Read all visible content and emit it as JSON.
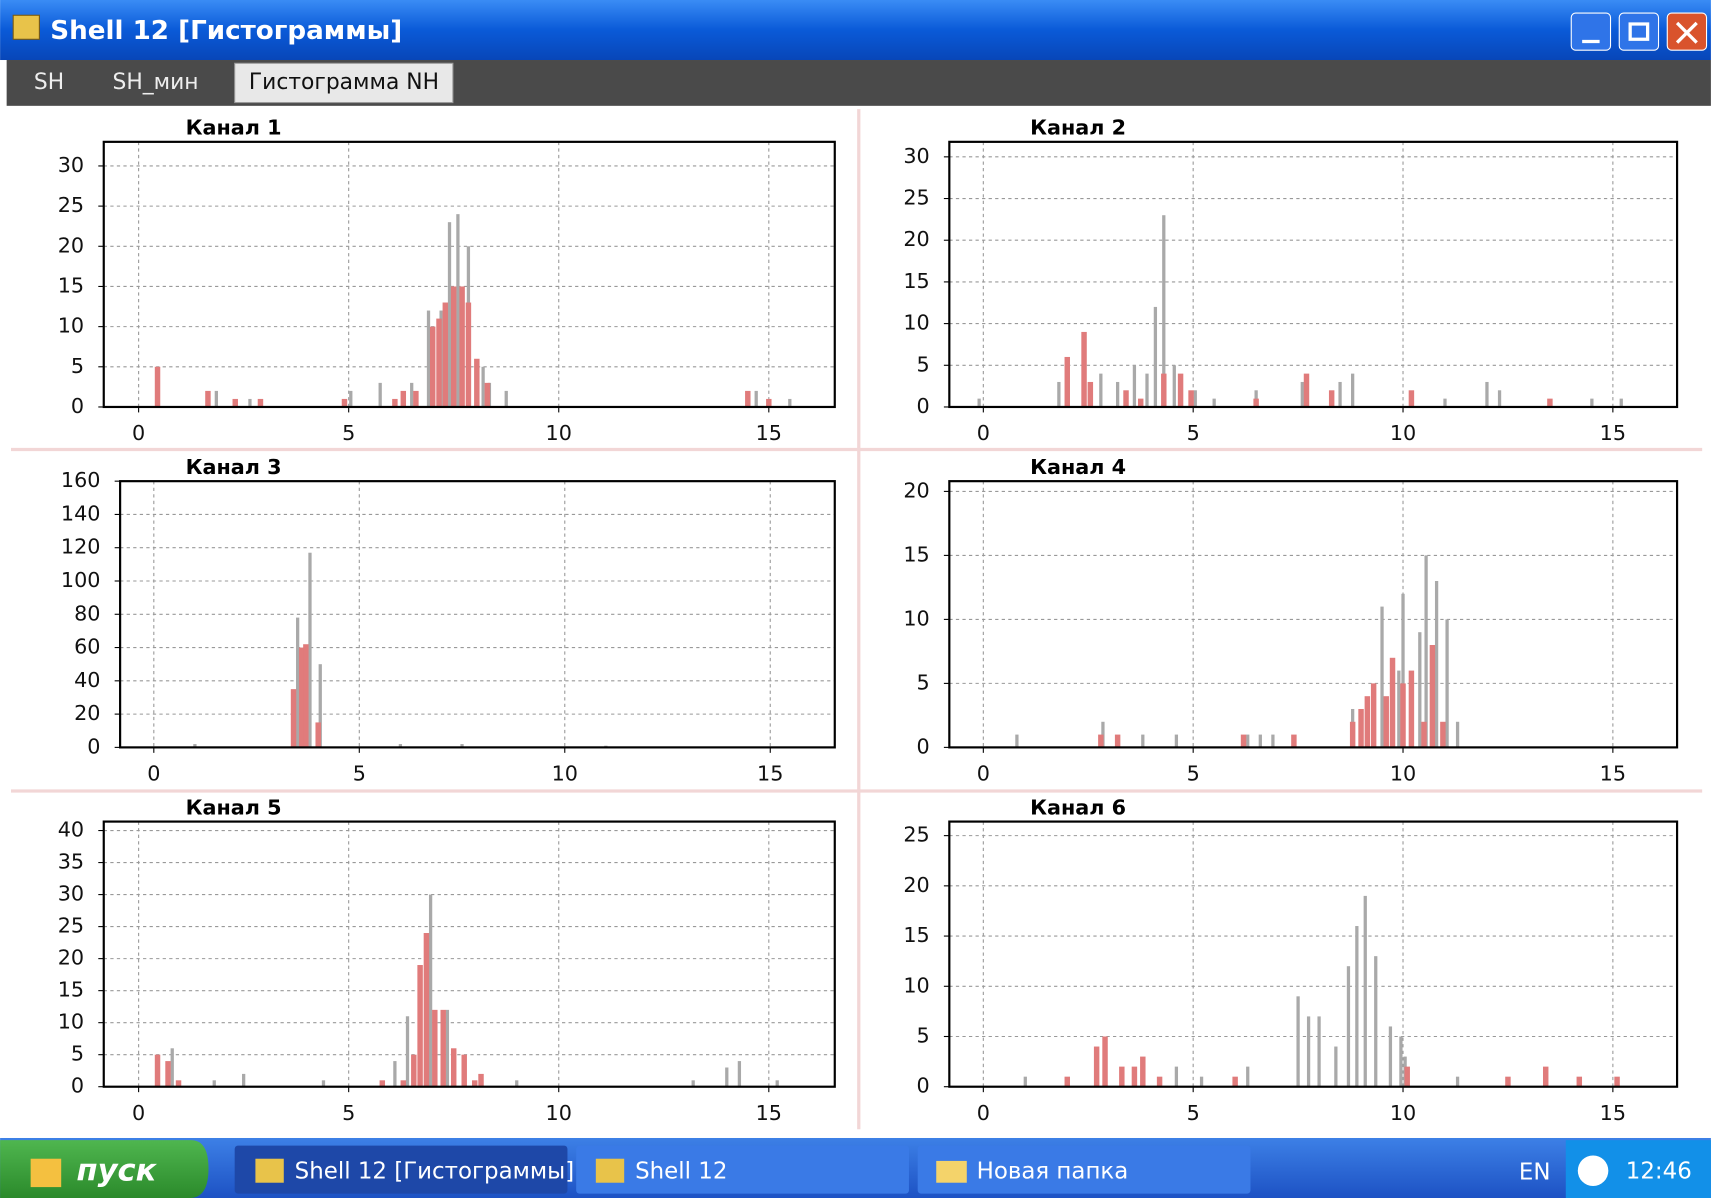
{
  "window": {
    "title": "Shell 12 [Гистограммы]"
  },
  "tabs": [
    "SH",
    "SH_мин",
    "Гистограмма NH"
  ],
  "chart_data": [
    {
      "type": "bar",
      "title": "Канал 1",
      "xlim": [
        -0.83,
        16.57
      ],
      "xticks": [
        0,
        5,
        10,
        15
      ],
      "ylim": [
        0,
        33
      ],
      "yticks": [
        0,
        5,
        10,
        15,
        20,
        25,
        30
      ],
      "grid": true,
      "series": [
        {
          "color": "#a9a9a9",
          "x": [
            1.85,
            2.65,
            5.05,
            5.75,
            6.5,
            6.9,
            7.2,
            7.4,
            7.6,
            7.85,
            8.2,
            8.35,
            8.75,
            14.7,
            15.5
          ],
          "values": [
            2,
            1,
            2,
            3,
            3,
            12,
            12,
            23,
            24,
            20,
            5,
            3,
            2,
            2,
            1
          ]
        },
        {
          "color": "#e07b7b",
          "x": [
            0.45,
            1.65,
            2.3,
            2.9,
            4.9,
            6.1,
            6.3,
            6.6,
            7.0,
            7.15,
            7.3,
            7.5,
            7.7,
            7.85,
            8.05,
            8.3,
            14.5,
            15.0
          ],
          "values": [
            5,
            2,
            1,
            1,
            1,
            1,
            2,
            2,
            10,
            11,
            13,
            15,
            15,
            13,
            6,
            3,
            2,
            1
          ]
        }
      ]
    },
    {
      "type": "bar",
      "title": "Канал 2",
      "xlim": [
        -0.81,
        16.53
      ],
      "xticks": [
        0,
        5,
        10,
        15
      ],
      "ylim": [
        0,
        31.8
      ],
      "yticks": [
        0,
        5,
        10,
        15,
        20,
        25,
        30
      ],
      "grid": true,
      "series": [
        {
          "color": "#a9a9a9",
          "x": [
            -0.1,
            1.8,
            2.8,
            3.2,
            3.6,
            3.9,
            4.1,
            4.3,
            4.55,
            5.05,
            5.5,
            6.5,
            7.6,
            8.5,
            8.8,
            11.0,
            12.0,
            12.3,
            14.5,
            15.2
          ],
          "values": [
            1,
            3,
            4,
            3,
            5,
            4,
            12,
            23,
            5,
            2,
            1,
            2,
            3,
            3,
            4,
            1,
            3,
            2,
            1,
            1
          ]
        },
        {
          "color": "#e07b7b",
          "x": [
            2.0,
            2.4,
            2.55,
            3.4,
            3.75,
            4.3,
            4.7,
            4.95,
            6.5,
            7.7,
            8.3,
            10.2,
            13.5
          ],
          "values": [
            6,
            9,
            3,
            2,
            1,
            4,
            4,
            2,
            1,
            4,
            2,
            2,
            1
          ]
        }
      ]
    },
    {
      "type": "bar",
      "title": "Канал 3",
      "xlim": [
        -0.82,
        16.57
      ],
      "xticks": [
        0,
        5,
        10,
        15
      ],
      "ylim": [
        0,
        160
      ],
      "yticks": [
        0,
        20,
        40,
        60,
        80,
        100,
        120,
        140,
        160
      ],
      "grid": true,
      "series": [
        {
          "color": "#a9a9a9",
          "x": [
            1.0,
            3.5,
            3.8,
            4.05,
            6.0,
            7.5,
            11.0
          ],
          "values": [
            2,
            78,
            117,
            50,
            2,
            2,
            1
          ]
        },
        {
          "color": "#e07b7b",
          "x": [
            3.4,
            3.6,
            3.7,
            4.0
          ],
          "values": [
            35,
            60,
            62,
            15
          ]
        }
      ]
    },
    {
      "type": "bar",
      "title": "Канал 4",
      "xlim": [
        -0.81,
        16.53
      ],
      "xticks": [
        0,
        5,
        10,
        15
      ],
      "ylim": [
        0,
        20.8
      ],
      "yticks": [
        0,
        5,
        10,
        15,
        20
      ],
      "grid": true,
      "series": [
        {
          "color": "#a9a9a9",
          "x": [
            0.8,
            2.85,
            3.8,
            4.6,
            6.3,
            6.6,
            6.9,
            8.8,
            9.5,
            9.9,
            10.0,
            10.4,
            10.55,
            10.8,
            11.05,
            11.3
          ],
          "values": [
            1,
            2,
            1,
            1,
            1,
            1,
            1,
            3,
            11,
            6,
            12,
            9,
            15,
            13,
            10,
            2
          ]
        },
        {
          "color": "#e07b7b",
          "x": [
            2.8,
            3.2,
            6.2,
            7.4,
            8.8,
            9.0,
            9.15,
            9.3,
            9.6,
            9.75,
            10.0,
            10.2,
            10.5,
            10.7,
            10.95
          ],
          "values": [
            1,
            1,
            1,
            1,
            2,
            3,
            4,
            5,
            4,
            7,
            5,
            6,
            2,
            8,
            2
          ]
        }
      ]
    },
    {
      "type": "bar",
      "title": "Канал 5",
      "xlim": [
        -0.83,
        16.57
      ],
      "xticks": [
        0,
        5,
        10,
        15
      ],
      "ylim": [
        0,
        41.4
      ],
      "yticks": [
        0,
        5,
        10,
        15,
        20,
        25,
        30,
        35,
        40
      ],
      "grid": true,
      "series": [
        {
          "color": "#a9a9a9",
          "x": [
            0.8,
            1.8,
            2.5,
            4.4,
            6.1,
            6.4,
            6.95,
            7.35,
            9.0,
            13.2,
            14.0,
            14.3,
            15.2
          ],
          "values": [
            6,
            1,
            2,
            1,
            4,
            11,
            30,
            12,
            1,
            1,
            3,
            4,
            1
          ]
        },
        {
          "color": "#e07b7b",
          "x": [
            0.45,
            0.7,
            0.95,
            5.8,
            6.3,
            6.55,
            6.7,
            6.85,
            7.05,
            7.25,
            7.5,
            7.75,
            8.0,
            8.15
          ],
          "values": [
            5,
            4,
            1,
            1,
            1,
            5,
            19,
            24,
            12,
            12,
            6,
            5,
            1,
            2
          ]
        }
      ]
    },
    {
      "type": "bar",
      "title": "Канал 6",
      "xlim": [
        -0.81,
        16.53
      ],
      "xticks": [
        0,
        5,
        10,
        15
      ],
      "ylim": [
        0,
        26.4
      ],
      "yticks": [
        0,
        5,
        10,
        15,
        20,
        25
      ],
      "grid": true,
      "series": [
        {
          "color": "#a9a9a9",
          "x": [
            1.0,
            4.6,
            5.2,
            6.3,
            7.5,
            7.75,
            8.0,
            8.4,
            8.7,
            8.9,
            9.1,
            9.35,
            9.7,
            9.95,
            10.05,
            11.3
          ],
          "values": [
            1,
            2,
            1,
            2,
            9,
            7,
            7,
            4,
            12,
            16,
            19,
            13,
            6,
            5,
            3,
            1
          ]
        },
        {
          "color": "#e07b7b",
          "x": [
            2.0,
            2.7,
            2.9,
            3.3,
            3.6,
            3.8,
            4.2,
            6.0,
            10.1,
            12.5,
            13.4,
            14.2,
            15.1
          ],
          "values": [
            1,
            4,
            5,
            2,
            2,
            3,
            1,
            1,
            2,
            1,
            2,
            1,
            1
          ]
        }
      ]
    }
  ],
  "taskbar": {
    "start": "пуск",
    "tasks": [
      "Shell 12 [Гистограммы]",
      "Shell 12",
      "Новая папка"
    ],
    "language": "EN",
    "clock": "12:46"
  }
}
